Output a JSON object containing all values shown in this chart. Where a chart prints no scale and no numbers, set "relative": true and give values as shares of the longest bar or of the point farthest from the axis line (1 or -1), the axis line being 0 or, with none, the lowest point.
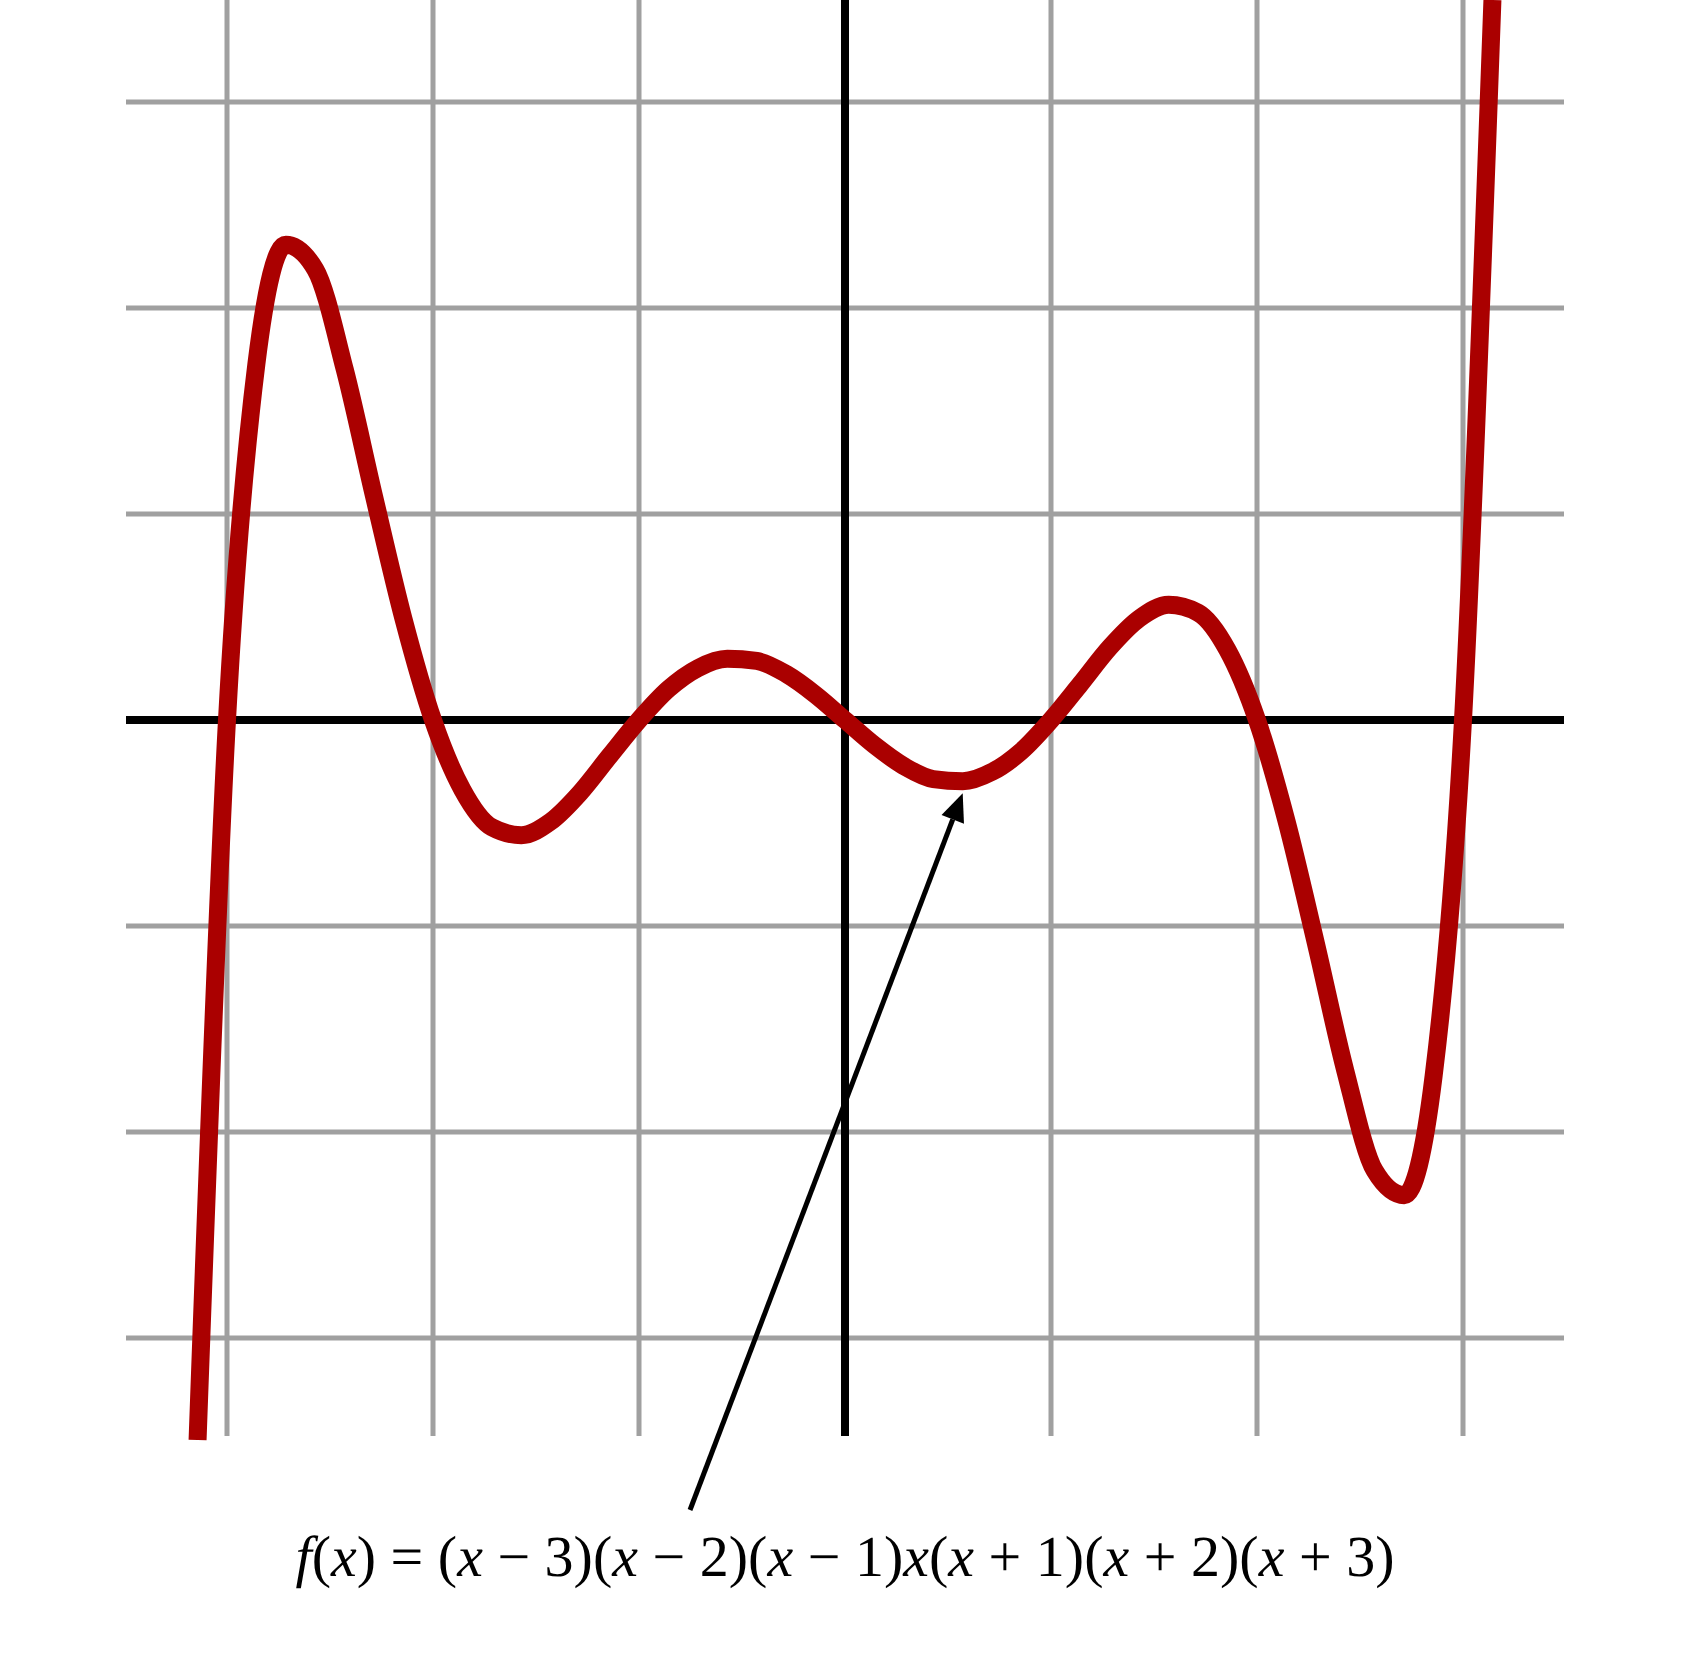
{
  "chart_data": {
    "type": "line",
    "relative": true,
    "grid": true,
    "categories": [
      null,
      null,
      null,
      null,
      null,
      null,
      null,
      null,
      null,
      null,
      null,
      null,
      null,
      null,
      null,
      null,
      null,
      null,
      null,
      null,
      null,
      null,
      null,
      null,
      null,
      null,
      null,
      null,
      null,
      null,
      null,
      null,
      null,
      null,
      null,
      null,
      null,
      null,
      null,
      null,
      null,
      null,
      null,
      null,
      null
    ],
    "series": [
      {
        "color": "#aa0000",
        "values": [
          -1,
          0,
          0.495,
          0.66,
          0.626,
          0.487,
          0.31,
          0.14,
          0,
          -0.097,
          -0.149,
          -0.16,
          -0.141,
          -0.101,
          -0.05,
          0,
          0.043,
          0.072,
          0.085,
          0.082,
          0.064,
          0.035,
          0,
          -0.035,
          -0.064,
          -0.082,
          -0.085,
          -0.072,
          -0.043,
          0,
          0.05,
          0.101,
          0.141,
          0.16,
          0.149,
          0.097,
          0,
          -0.14,
          -0.31,
          -0.487,
          -0.626,
          -0.66,
          -0.495,
          0,
          1
        ]
      }
    ],
    "annotations": [
      "f(x) = (x − 3)(x − 2)(x − 1)x(x + 1)(x + 2)(x + 3)"
    ]
  }
}
